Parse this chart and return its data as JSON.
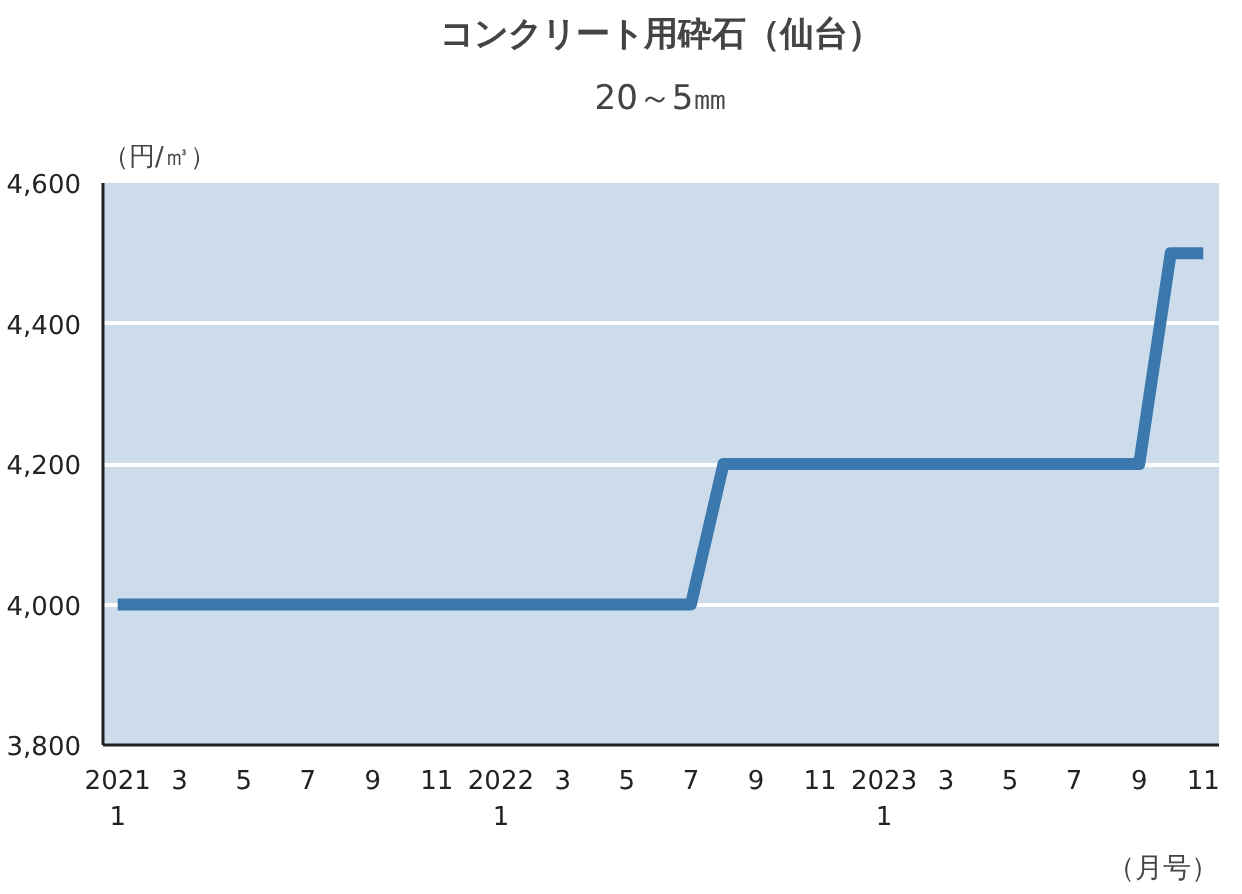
{
  "chart_data": {
    "type": "line",
    "title": "コンクリート用砕石（仙台）",
    "subtitle": "20～5㎜",
    "ylabel": "（円/㎥）",
    "xlabel": "（月号）",
    "x": [
      "2021-01",
      "2022-07",
      "2022-08",
      "2023-09",
      "2023-10",
      "2023-11"
    ],
    "series": [
      {
        "color": "#3a78ae",
        "values": [
          4000,
          4000,
          4200,
          4200,
          4500,
          4500
        ]
      }
    ],
    "xlim": [
      "2020-12-18",
      "2023-11-16"
    ],
    "xticks": [
      {
        "value": "2021-01",
        "label": "2021\n1"
      },
      {
        "value": "2021-03",
        "label": "3"
      },
      {
        "value": "2021-05",
        "label": "5"
      },
      {
        "value": "2021-07",
        "label": "7"
      },
      {
        "value": "2021-09",
        "label": "9"
      },
      {
        "value": "2021-11",
        "label": "11"
      },
      {
        "value": "2022-01",
        "label": "2022\n1"
      },
      {
        "value": "2022-03",
        "label": "3"
      },
      {
        "value": "2022-05",
        "label": "5"
      },
      {
        "value": "2022-07",
        "label": "7"
      },
      {
        "value": "2022-09",
        "label": "9"
      },
      {
        "value": "2022-11",
        "label": "11"
      },
      {
        "value": "2023-01",
        "label": "2023\n1"
      },
      {
        "value": "2023-03",
        "label": "3"
      },
      {
        "value": "2023-05",
        "label": "5"
      },
      {
        "value": "2023-07",
        "label": "7"
      },
      {
        "value": "2023-09",
        "label": "9"
      },
      {
        "value": "2023-11",
        "label": "11"
      }
    ],
    "ylim": [
      3800,
      4600
    ],
    "yticks": [
      {
        "value": 3800,
        "label": "3,800"
      },
      {
        "value": 4000,
        "label": "4,000"
      },
      {
        "value": 4200,
        "label": "4,200"
      },
      {
        "value": 4400,
        "label": "4,400"
      },
      {
        "value": 4600,
        "label": "4,600"
      }
    ],
    "grid": "y",
    "line_style": "solid",
    "marker": "none"
  }
}
